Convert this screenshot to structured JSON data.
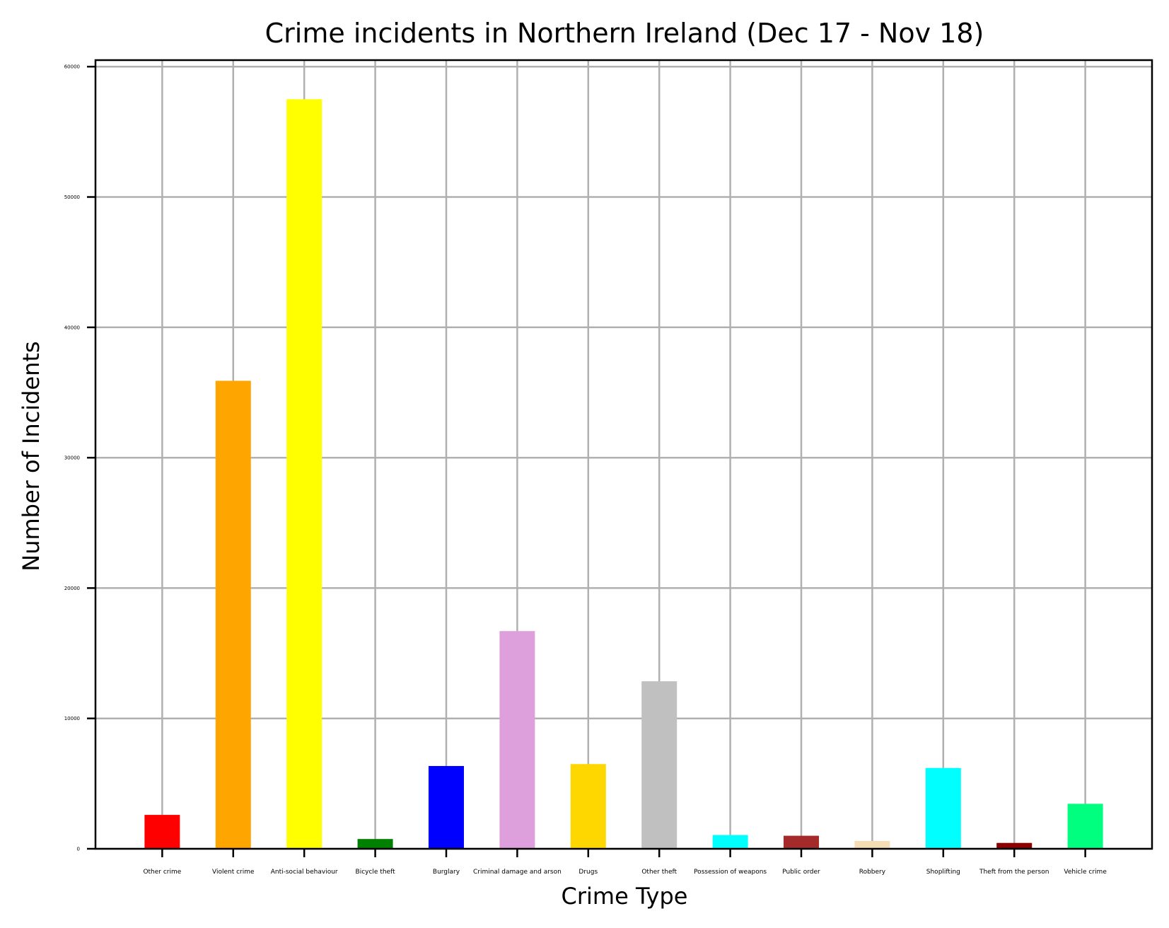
{
  "chart_data": {
    "type": "bar",
    "title": "Crime incidents in Northern Ireland (Dec 17 - Nov 18)",
    "xlabel": "Crime Type",
    "ylabel": "Number of Incidents",
    "ylim": [
      0,
      60500
    ],
    "yticks": [
      0,
      10000,
      20000,
      30000,
      40000,
      50000,
      60000
    ],
    "ytick_labels": [
      "0",
      "10000",
      "20000",
      "30000",
      "40000",
      "50000",
      "60000"
    ],
    "grid": true,
    "categories": [
      "Other crime",
      "Violent crime",
      "Anti-social behaviour",
      "Bicycle theft",
      "Burglary",
      "Criminal damage and arson",
      "Drugs",
      "Other theft",
      "Possession of weapons",
      "Public order",
      "Robbery",
      "Shoplifting",
      "Theft from the person",
      "Vehicle crime"
    ],
    "values": [
      2600,
      35900,
      57500,
      750,
      6350,
      16700,
      6500,
      12850,
      1050,
      1000,
      600,
      6200,
      450,
      3450
    ],
    "colors": [
      "#ff0000",
      "#ffa500",
      "#ffff00",
      "#008000",
      "#0000ff",
      "#dda0dd",
      "#ffd700",
      "#c0c0c0",
      "#00ffff",
      "#a52a2a",
      "#f5deb3",
      "#00ffff",
      "#8b0000",
      "#00ff7f"
    ]
  }
}
